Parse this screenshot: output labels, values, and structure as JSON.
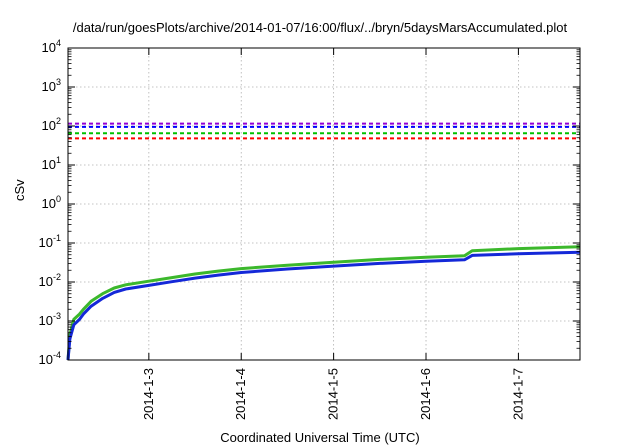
{
  "chart_data": {
    "type": "line",
    "title": "/data/run/goesPlots/archive/2014-01-07/16:00/flux/../bryn/5daysMarsAccumulated.plot",
    "xlabel": "Coordinated Universal Time (UTC)",
    "ylabel": "cSv",
    "y_scale": "log",
    "ylim": [
      0.0001,
      10000
    ],
    "xlim": [
      "2014-01-02 03:00",
      "2014-01-07 16:00"
    ],
    "grid": true,
    "y_ticks": [
      {
        "value": 0.0001,
        "base": "10",
        "exp": "-4"
      },
      {
        "value": 0.001,
        "base": "10",
        "exp": "-3"
      },
      {
        "value": 0.01,
        "base": "10",
        "exp": "-2"
      },
      {
        "value": 0.1,
        "base": "10",
        "exp": "-1"
      },
      {
        "value": 1,
        "base": "10",
        "exp": "0"
      },
      {
        "value": 10,
        "base": "10",
        "exp": "1"
      },
      {
        "value": 100,
        "base": "10",
        "exp": "2"
      },
      {
        "value": 1000,
        "base": "10",
        "exp": "3"
      },
      {
        "value": 10000,
        "base": "10",
        "exp": "4"
      }
    ],
    "x_ticks": [
      "2014-1-3",
      "2014-1-4",
      "2014-1-5",
      "2014-1-6",
      "2014-1-7"
    ],
    "reference_lines": [
      {
        "value": 115,
        "color": "#9400d3"
      },
      {
        "value": 95,
        "color": "#0000ff"
      },
      {
        "value": 65,
        "color": "#00c000"
      },
      {
        "value": 48,
        "color": "#ff0000"
      }
    ],
    "series": [
      {
        "color": "#3cb82c",
        "x": [
          "2014-01-02 03:00",
          "2014-01-02 03:30",
          "2014-01-02 04:30",
          "2014-01-02 06:00",
          "2014-01-02 07:00",
          "2014-01-02 09:00",
          "2014-01-02 12:00",
          "2014-01-02 15:00",
          "2014-01-02 18:00",
          "2014-01-03 00:00",
          "2014-01-03 06:00",
          "2014-01-03 12:00",
          "2014-01-03 18:00",
          "2014-01-04 00:00",
          "2014-01-04 12:00",
          "2014-01-05 00:00",
          "2014-01-05 12:00",
          "2014-01-06 00:00",
          "2014-01-06 10:00",
          "2014-01-06 12:00",
          "2014-01-07 00:00",
          "2014-01-07 16:00"
        ],
        "values": [
          0.0001,
          0.00045,
          0.0011,
          0.0015,
          0.002,
          0.0032,
          0.005,
          0.007,
          0.0085,
          0.0105,
          0.013,
          0.016,
          0.019,
          0.022,
          0.027,
          0.032,
          0.038,
          0.043,
          0.047,
          0.063,
          0.072,
          0.08
        ]
      },
      {
        "color": "#1428d8",
        "x": [
          "2014-01-02 03:00",
          "2014-01-02 03:30",
          "2014-01-02 04:30",
          "2014-01-02 06:00",
          "2014-01-02 07:00",
          "2014-01-02 09:00",
          "2014-01-02 12:00",
          "2014-01-02 15:00",
          "2014-01-02 18:00",
          "2014-01-03 00:00",
          "2014-01-03 06:00",
          "2014-01-03 12:00",
          "2014-01-03 18:00",
          "2014-01-04 00:00",
          "2014-01-04 12:00",
          "2014-01-05 00:00",
          "2014-01-05 12:00",
          "2014-01-06 00:00",
          "2014-01-06 10:00",
          "2014-01-06 12:00",
          "2014-01-07 00:00",
          "2014-01-07 16:00"
        ],
        "values": [
          0.0001,
          0.00035,
          0.0008,
          0.0011,
          0.0015,
          0.0024,
          0.0038,
          0.0054,
          0.0066,
          0.0082,
          0.0102,
          0.0126,
          0.015,
          0.0175,
          0.0215,
          0.0255,
          0.03,
          0.034,
          0.037,
          0.048,
          0.053,
          0.058
        ]
      }
    ]
  }
}
